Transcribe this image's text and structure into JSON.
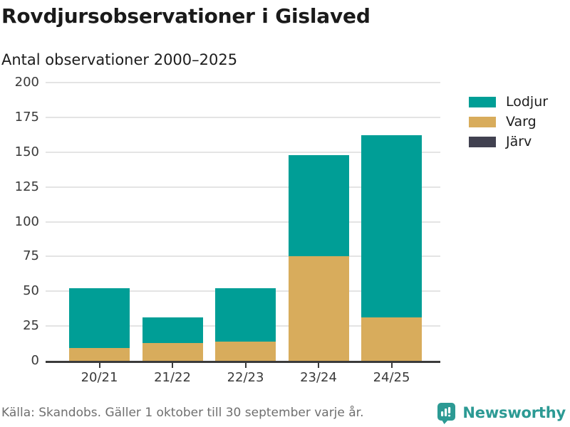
{
  "header": {
    "title": "Rovdjursobservationer i Gislaved",
    "subtitle": "Antal observationer 2000–2025"
  },
  "chart_data": {
    "type": "bar",
    "stacked": true,
    "title": "Rovdjursobservationer i Gislaved",
    "subtitle": "Antal observationer 2000–2025",
    "categories": [
      "20/21",
      "21/22",
      "22/23",
      "23/24",
      "24/25"
    ],
    "series": [
      {
        "name": "Lodjur",
        "color": "#009E96",
        "values": [
          43,
          18,
          38,
          73,
          131
        ]
      },
      {
        "name": "Varg",
        "color": "#D8AC5C",
        "values": [
          9,
          13,
          14,
          75,
          31
        ]
      },
      {
        "name": "Järv",
        "color": "#414150",
        "values": [
          0,
          0,
          0,
          0,
          0
        ]
      }
    ],
    "stack_order_bottom_to_top": [
      "Varg",
      "Lodjur",
      "Järv"
    ],
    "totals": [
      52,
      31,
      52,
      148,
      162
    ],
    "ylim": [
      0,
      200
    ],
    "yticks": [
      0,
      25,
      50,
      75,
      100,
      125,
      150,
      175,
      200
    ],
    "xlabel": "",
    "ylabel": "Antal observationer",
    "grid": true,
    "legend_position": "right"
  },
  "footer": {
    "source": "Källa: Skandobs. Gäller 1 oktober till 30 september varje år.",
    "brand": "Newsworthy"
  },
  "colors": {
    "lodjur": "#009E96",
    "varg": "#D8AC5C",
    "jarv": "#414150",
    "axis": "#3b3b3b",
    "gridline": "#e4e4e4",
    "brand_teal": "#2c9a94",
    "source_text": "#6f6f6f"
  }
}
